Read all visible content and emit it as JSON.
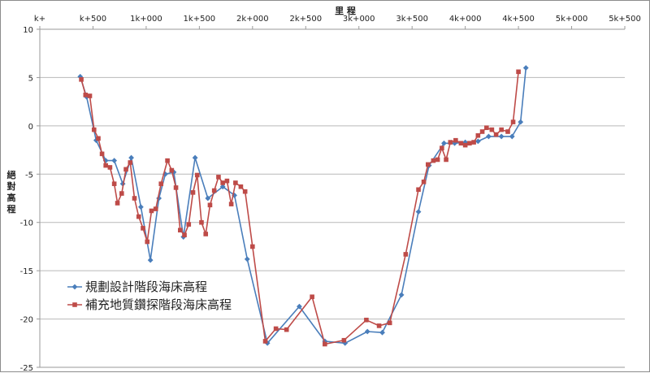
{
  "chart_data": {
    "type": "line",
    "xlabel": "里 程",
    "ylabel": "絕對高程",
    "xlim": [
      0,
      5500
    ],
    "ylim": [
      -25,
      10
    ],
    "x_tick_values": [
      0,
      500,
      1000,
      1500,
      2000,
      2500,
      3000,
      3500,
      4000,
      4500,
      5000,
      5500
    ],
    "x_tick_labels": [
      "k+",
      "k+500",
      "1k+000",
      "1k+500",
      "2k+000",
      "2k+500",
      "3k+000",
      "3k+500",
      "4k+000",
      "4k+500",
      "5k+000",
      "5k+500"
    ],
    "y_tick_values": [
      10,
      5,
      0,
      -5,
      -10,
      -15,
      -20,
      -25
    ],
    "y_tick_labels": [
      "10",
      "5",
      "0",
      "-5",
      "-10",
      "-15",
      "-20",
      "-25"
    ],
    "grid": true,
    "legend_position": "lower-left",
    "series": [
      {
        "name": "規劃設計階段海床高程",
        "color": "#4a7ebb",
        "marker": "diamond",
        "points": [
          [
            380,
            5.1
          ],
          [
            440,
            3.0
          ],
          [
            530,
            -1.5
          ],
          [
            620,
            -3.6
          ],
          [
            700,
            -3.6
          ],
          [
            780,
            -6.0
          ],
          [
            860,
            -3.3
          ],
          [
            950,
            -8.4
          ],
          [
            1040,
            -13.9
          ],
          [
            1120,
            -7.5
          ],
          [
            1180,
            -5.0
          ],
          [
            1260,
            -4.8
          ],
          [
            1350,
            -11.5
          ],
          [
            1460,
            -3.3
          ],
          [
            1580,
            -7.5
          ],
          [
            1720,
            -6.3
          ],
          [
            1830,
            -7.2
          ],
          [
            1950,
            -13.8
          ],
          [
            2140,
            -22.5
          ],
          [
            2440,
            -18.7
          ],
          [
            2680,
            -22.3
          ],
          [
            2870,
            -22.5
          ],
          [
            3080,
            -21.3
          ],
          [
            3220,
            -21.4
          ],
          [
            3400,
            -17.5
          ],
          [
            3560,
            -8.9
          ],
          [
            3660,
            -4.1
          ],
          [
            3800,
            -1.8
          ],
          [
            3900,
            -1.8
          ],
          [
            4000,
            -1.7
          ],
          [
            4120,
            -1.6
          ],
          [
            4220,
            -1.1
          ],
          [
            4340,
            -1.1
          ],
          [
            4440,
            -1.1
          ],
          [
            4520,
            0.4
          ],
          [
            4570,
            6.0
          ]
        ]
      },
      {
        "name": "補充地質鑽探階段海床高程",
        "color": "#be4b48",
        "marker": "square",
        "points": [
          [
            390,
            4.8
          ],
          [
            430,
            3.2
          ],
          [
            470,
            3.1
          ],
          [
            510,
            -0.4
          ],
          [
            550,
            -1.3
          ],
          [
            585,
            -2.9
          ],
          [
            620,
            -4.1
          ],
          [
            660,
            -4.3
          ],
          [
            700,
            -6.0
          ],
          [
            730,
            -8.0
          ],
          [
            770,
            -7.0
          ],
          [
            810,
            -4.5
          ],
          [
            850,
            -3.8
          ],
          [
            890,
            -7.5
          ],
          [
            930,
            -9.4
          ],
          [
            970,
            -10.6
          ],
          [
            1010,
            -12.0
          ],
          [
            1050,
            -8.8
          ],
          [
            1090,
            -8.6
          ],
          [
            1140,
            -6.0
          ],
          [
            1200,
            -3.6
          ],
          [
            1240,
            -4.6
          ],
          [
            1280,
            -6.4
          ],
          [
            1320,
            -10.8
          ],
          [
            1360,
            -11.3
          ],
          [
            1400,
            -10.2
          ],
          [
            1440,
            -6.9
          ],
          [
            1480,
            -5.1
          ],
          [
            1520,
            -10.0
          ],
          [
            1560,
            -11.2
          ],
          [
            1600,
            -8.2
          ],
          [
            1640,
            -6.7
          ],
          [
            1680,
            -5.3
          ],
          [
            1720,
            -5.9
          ],
          [
            1760,
            -5.7
          ],
          [
            1800,
            -8.1
          ],
          [
            1840,
            -5.9
          ],
          [
            1890,
            -6.3
          ],
          [
            1930,
            -6.8
          ],
          [
            2000,
            -12.5
          ],
          [
            2120,
            -22.3
          ],
          [
            2220,
            -21.0
          ],
          [
            2320,
            -21.1
          ],
          [
            2560,
            -17.7
          ],
          [
            2680,
            -22.6
          ],
          [
            2860,
            -22.2
          ],
          [
            3070,
            -20.1
          ],
          [
            3190,
            -20.7
          ],
          [
            3290,
            -20.4
          ],
          [
            3440,
            -13.3
          ],
          [
            3560,
            -6.6
          ],
          [
            3610,
            -5.8
          ],
          [
            3650,
            -4.0
          ],
          [
            3700,
            -3.6
          ],
          [
            3740,
            -3.5
          ],
          [
            3780,
            -2.3
          ],
          [
            3820,
            -3.5
          ],
          [
            3860,
            -1.7
          ],
          [
            3910,
            -1.5
          ],
          [
            3960,
            -1.8
          ],
          [
            4000,
            -2.0
          ],
          [
            4040,
            -1.8
          ],
          [
            4080,
            -1.7
          ],
          [
            4120,
            -1.0
          ],
          [
            4160,
            -0.6
          ],
          [
            4200,
            -0.2
          ],
          [
            4250,
            -0.4
          ],
          [
            4290,
            -0.9
          ],
          [
            4340,
            -0.4
          ],
          [
            4400,
            -0.6
          ],
          [
            4450,
            0.4
          ],
          [
            4500,
            5.6
          ]
        ]
      }
    ]
  }
}
